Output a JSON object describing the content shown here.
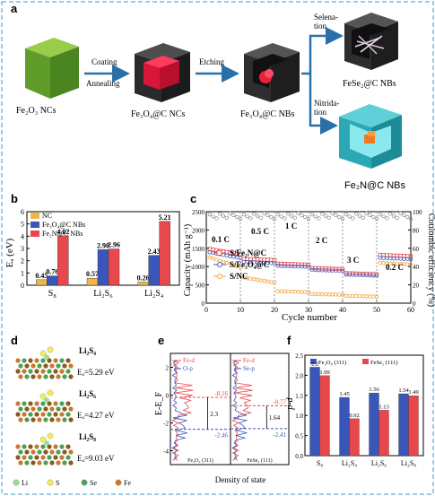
{
  "panel_letters": {
    "a": "a",
    "b": "b",
    "c": "c",
    "d": "d",
    "e": "e",
    "f": "f"
  },
  "panel_a": {
    "materials": {
      "fe2o3": "Fe₂O₃ NCs",
      "fe3o4c_ncs": "Fe₃O₄@C NCs",
      "fe3o4c_nbs": "Fe₃O₄@C NBs",
      "fese2": "FeSe₂@C NBs",
      "fe2n": "Fe₂N@C NBs"
    },
    "steps": {
      "coating": "Coating",
      "annealing": "Annealing",
      "etching": "Etching",
      "selenation_1": "Selena-",
      "selenation_2": "tion",
      "nitridation_1": "Nitrida-",
      "nitridation_2": "tion"
    }
  },
  "panel_b": {
    "chart_data": {
      "type": "bar",
      "categories": [
        "S₈",
        "Li₂S₆",
        "Li₂S₄"
      ],
      "series": [
        {
          "name": "NC",
          "values": [
            0.45,
            0.57,
            0.26
          ],
          "color": "#f2b648"
        },
        {
          "name": "Fe₃O₄@C NBs",
          "values": [
            0.76,
            2.9,
            2.43
          ],
          "color": "#3a56b8"
        },
        {
          "name": "Fe₂N@C NBs",
          "values": [
            4.02,
            2.96,
            5.21
          ],
          "color": "#e8484c"
        }
      ],
      "ylabel": "Eₐ (eV)",
      "ylim": [
        0,
        6
      ],
      "yticks": [
        "0",
        "1",
        "2",
        "3",
        "4",
        "5",
        "6"
      ],
      "value_labels": [
        [
          "0.45",
          "0.76",
          "4.02"
        ],
        [
          "0.57",
          "2.90",
          "2.96"
        ],
        [
          "0.26",
          "2.43",
          "5.21"
        ]
      ],
      "legend": "top-left"
    }
  },
  "panel_c": {
    "chart_data": {
      "type": "scatter",
      "xlabel": "Cycle number",
      "ylabel_left": "Capacity (mAh g⁻¹)",
      "ylabel_right": "Coulombic efficiency (%)",
      "xlim": [
        0,
        60
      ],
      "ylim_left": [
        0,
        2500
      ],
      "ylim_right": [
        0,
        100
      ],
      "xticks": [
        "0",
        "10",
        "20",
        "30",
        "40",
        "50",
        "60"
      ],
      "yticks_left": [
        "0",
        "500",
        "1000",
        "1500",
        "2000",
        "2500"
      ],
      "yticks_right": [
        "0",
        "20",
        "40",
        "60",
        "80",
        "100"
      ],
      "rate_labels": [
        "0.1 C",
        "0.5 C",
        "1 C",
        "2 C",
        "3 C",
        "0.2 C"
      ],
      "series": [
        {
          "name": "S/Fe₂N@C",
          "color": "#e8484c",
          "marker": "square",
          "segments": [
            [
              1,
              10,
              1480,
              1330
            ],
            [
              11,
              20,
              1210,
              1180
            ],
            [
              21,
              30,
              1080,
              1050
            ],
            [
              31,
              40,
              960,
              930
            ],
            [
              41,
              50,
              820,
              790
            ],
            [
              51,
              60,
              1320,
              1280
            ]
          ]
        },
        {
          "name": "S/Fe₃O₄@C",
          "color": "#4a5fc1",
          "marker": "circle",
          "segments": [
            [
              1,
              10,
              1390,
              1230
            ],
            [
              11,
              20,
              1130,
              1090
            ],
            [
              21,
              30,
              1020,
              990
            ],
            [
              31,
              40,
              910,
              880
            ],
            [
              41,
              50,
              780,
              750
            ],
            [
              51,
              60,
              1240,
              1200
            ]
          ]
        },
        {
          "name": "S/NC",
          "color": "#f0a63a",
          "marker": "circle",
          "segments": [
            [
              1,
              10,
              1250,
              980
            ],
            [
              11,
              20,
              700,
              560
            ],
            [
              21,
              30,
              330,
              300
            ],
            [
              31,
              40,
              250,
              230
            ],
            [
              41,
              50,
              200,
              180
            ],
            [
              51,
              60,
              1100,
              1060
            ]
          ]
        }
      ],
      "ce_series": {
        "name": "Coulombic efficiency",
        "value_range": [
          92,
          99
        ]
      },
      "legend": "center-left"
    }
  },
  "panel_d": {
    "items": [
      {
        "species": "Li₂S₄",
        "energy": "Eₐ=5.29 eV"
      },
      {
        "species": "Li₂S₆",
        "energy": "Eₐ=4.27 eV"
      },
      {
        "species": "Li₂S₈",
        "energy": "Eₐ=9.03 eV"
      }
    ],
    "legend": [
      {
        "name": "Li",
        "color": "#9adf8f"
      },
      {
        "name": "S",
        "color": "#f2ec5a"
      },
      {
        "name": "Se",
        "color": "#4aa05a"
      },
      {
        "name": "Fe",
        "color": "#c77a2e"
      }
    ]
  },
  "panel_e": {
    "chart_data": {
      "type": "line",
      "ylabel": "E-E_F",
      "xlabel": "Density of state",
      "subplots": [
        {
          "name": "Fe₃O₄ (311)",
          "legend": [
            "Fe-d",
            "O-p"
          ],
          "upper": "-0.16",
          "delta": "2.3",
          "lower": "-2.46"
        },
        {
          "name": "FeSe₂ (111)",
          "legend": [
            "Fe-d",
            "Se-p"
          ],
          "upper": "-0.77",
          "delta": "1.64",
          "lower": "-2.41"
        }
      ],
      "yticks": [
        "2",
        "0",
        "-2",
        "-4"
      ]
    }
  },
  "panel_f": {
    "chart_data": {
      "type": "bar",
      "categories": [
        "S₈",
        "Li₂S₄",
        "Li₂S₆",
        "Li₂S₈"
      ],
      "series": [
        {
          "name": "Fe₃O₄ (311)",
          "values": [
            2.2,
            1.45,
            1.56,
            1.54
          ],
          "color": "#3a56b8"
        },
        {
          "name": "FeSe₂ (111)",
          "values": [
            1.99,
            0.92,
            1.13,
            1.49
          ],
          "color": "#e8484c"
        }
      ],
      "value_labels": [
        [
          "2.2",
          "1.99"
        ],
        [
          "1.45",
          "0.92"
        ],
        [
          "1.56",
          "1.13"
        ],
        [
          "1.54",
          "1.49"
        ]
      ],
      "ylabel": "p-d",
      "ylim": [
        0,
        2.5
      ],
      "yticks": [
        "0.0",
        "0.5",
        "1.0",
        "1.5",
        "2.0",
        "2.5"
      ],
      "legend": "top-center"
    }
  }
}
